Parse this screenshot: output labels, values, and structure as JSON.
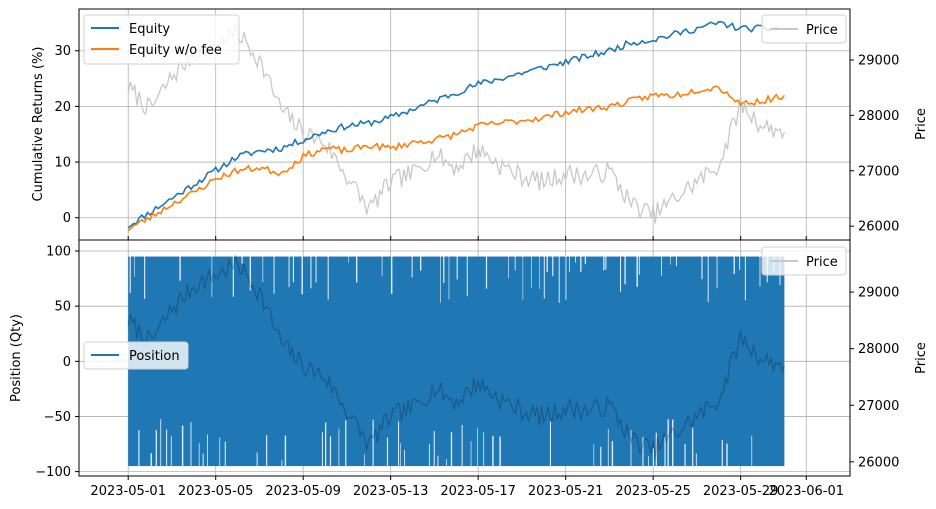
{
  "colors": {
    "equity": "#1f77b4",
    "equity_no_fee": "#ff7f0e",
    "price": "#c8c8c8",
    "position": "#1f77b4",
    "grid": "#b0b0b0",
    "axis": "#000000"
  },
  "chart_data": [
    {
      "type": "line",
      "title": "",
      "xlabel": "",
      "ylabel": "Cumulative Returns (%)",
      "y2label": "Price",
      "xlim": [
        "2023-04-28T18:00",
        "2023-06-03T00:00"
      ],
      "ylim": [
        -4,
        37.5
      ],
      "y2lim": [
        25750,
        29920
      ],
      "x_ticks": [
        "2023-05-01",
        "2023-05-05",
        "2023-05-09",
        "2023-05-13",
        "2023-05-17",
        "2023-05-21",
        "2023-05-25",
        "2023-05-29",
        "2023-06-01"
      ],
      "y_ticks": [
        "0",
        "10",
        "20",
        "30"
      ],
      "y2_ticks": [
        "26000",
        "27000",
        "28000",
        "29000"
      ],
      "grid": true,
      "legend": [
        {
          "location": "upper left",
          "entries": [
            "Equity",
            "Equity w/o fee"
          ]
        },
        {
          "location": "upper right",
          "entries": [
            "Price"
          ]
        }
      ],
      "series": [
        {
          "name": "Equity",
          "axis": "left",
          "x": [
            "2023-05-01",
            "2023-05-02",
            "2023-05-03",
            "2023-05-04",
            "2023-05-05",
            "2023-05-06",
            "2023-05-07",
            "2023-05-08",
            "2023-05-09",
            "2023-05-10",
            "2023-05-11",
            "2023-05-12",
            "2023-05-13",
            "2023-05-14",
            "2023-05-15",
            "2023-05-16",
            "2023-05-17",
            "2023-05-18",
            "2023-05-19",
            "2023-05-20",
            "2023-05-21",
            "2023-05-22",
            "2023-05-23",
            "2023-05-24",
            "2023-05-25",
            "2023-05-26",
            "2023-05-27",
            "2023-05-28",
            "2023-05-29",
            "2023-05-30",
            "2023-05-31"
          ],
          "values": [
            -1.5,
            1,
            3.5,
            6,
            8.5,
            11,
            12,
            12.5,
            14,
            15.5,
            16.5,
            17,
            18,
            19.5,
            21,
            22.5,
            24,
            25,
            26,
            27,
            28,
            29,
            30,
            31.5,
            32,
            33,
            34,
            35,
            34,
            34,
            34
          ]
        },
        {
          "name": "Equity w/o fee",
          "axis": "left",
          "x": [
            "2023-05-01",
            "2023-05-02",
            "2023-05-03",
            "2023-05-04",
            "2023-05-05",
            "2023-05-06",
            "2023-05-07",
            "2023-05-08",
            "2023-05-09",
            "2023-05-10",
            "2023-05-11",
            "2023-05-12",
            "2023-05-13",
            "2023-05-14",
            "2023-05-15",
            "2023-05-16",
            "2023-05-17",
            "2023-05-18",
            "2023-05-19",
            "2023-05-20",
            "2023-05-21",
            "2023-05-22",
            "2023-05-23",
            "2023-05-24",
            "2023-05-25",
            "2023-05-26",
            "2023-05-27",
            "2023-05-28",
            "2023-05-29",
            "2023-05-30",
            "2023-05-31"
          ],
          "values": [
            -2,
            0,
            2.5,
            4.5,
            7,
            8.5,
            9,
            8,
            11,
            12.5,
            12,
            13,
            12.5,
            13.5,
            14,
            15,
            16.5,
            17,
            17.5,
            18,
            19,
            19.5,
            20,
            21,
            22,
            22,
            23,
            23.5,
            20.5,
            21,
            22
          ]
        },
        {
          "name": "Price",
          "axis": "right",
          "x": [
            "2023-05-01",
            "2023-05-02",
            "2023-05-03",
            "2023-05-04",
            "2023-05-05",
            "2023-05-06",
            "2023-05-07",
            "2023-05-08",
            "2023-05-09",
            "2023-05-10",
            "2023-05-11",
            "2023-05-12",
            "2023-05-13",
            "2023-05-14",
            "2023-05-15",
            "2023-05-16",
            "2023-05-17",
            "2023-05-18",
            "2023-05-19",
            "2023-05-20",
            "2023-05-21",
            "2023-05-22",
            "2023-05-23",
            "2023-05-24",
            "2023-05-25",
            "2023-05-26",
            "2023-05-27",
            "2023-05-28",
            "2023-05-29",
            "2023-05-30",
            "2023-05-31"
          ],
          "values": [
            28500,
            28100,
            28700,
            29100,
            29300,
            29500,
            29000,
            28100,
            27700,
            27500,
            26900,
            26300,
            26800,
            26950,
            27300,
            27050,
            27400,
            27100,
            26900,
            26800,
            26950,
            26900,
            27000,
            26400,
            26200,
            26500,
            26800,
            27100,
            28200,
            27800,
            27700
          ]
        }
      ]
    },
    {
      "type": "line",
      "title": "",
      "xlabel": "",
      "ylabel": "Position (Qty)",
      "y2label": "Price",
      "xlim": [
        "2023-04-28T18:00",
        "2023-06-03T00:00"
      ],
      "ylim": [
        -104,
        110
      ],
      "y2lim": [
        25750,
        29920
      ],
      "x_ticks": [
        "2023-05-01",
        "2023-05-05",
        "2023-05-09",
        "2023-05-13",
        "2023-05-17",
        "2023-05-21",
        "2023-05-25",
        "2023-05-29",
        "2023-06-01"
      ],
      "y_ticks": [
        "100",
        "50",
        "0",
        "−50",
        "−100"
      ],
      "y2_ticks": [
        "26000",
        "27000",
        "28000",
        "29000"
      ],
      "grid": true,
      "legend": [
        {
          "location": "center left",
          "entries": [
            "Position"
          ]
        },
        {
          "location": "upper right",
          "entries": [
            "Price"
          ]
        }
      ],
      "series": [
        {
          "name": "Position",
          "axis": "left",
          "x_range": [
            "2023-05-01",
            "2023-05-31"
          ],
          "max": 95,
          "min": -95
        },
        {
          "name": "Price",
          "axis": "right",
          "x": [
            "2023-05-01",
            "2023-05-02",
            "2023-05-03",
            "2023-05-04",
            "2023-05-05",
            "2023-05-06",
            "2023-05-07",
            "2023-05-08",
            "2023-05-09",
            "2023-05-10",
            "2023-05-11",
            "2023-05-12",
            "2023-05-13",
            "2023-05-14",
            "2023-05-15",
            "2023-05-16",
            "2023-05-17",
            "2023-05-18",
            "2023-05-19",
            "2023-05-20",
            "2023-05-21",
            "2023-05-22",
            "2023-05-23",
            "2023-05-24",
            "2023-05-25",
            "2023-05-26",
            "2023-05-27",
            "2023-05-28",
            "2023-05-29",
            "2023-05-30",
            "2023-05-31"
          ],
          "values": [
            28500,
            28100,
            28700,
            29100,
            29300,
            29500,
            29000,
            28100,
            27700,
            27500,
            26900,
            26300,
            26800,
            26950,
            27300,
            27050,
            27400,
            27100,
            26900,
            26800,
            26950,
            26900,
            27000,
            26400,
            26200,
            26500,
            26800,
            27100,
            28200,
            27800,
            27700
          ]
        }
      ]
    }
  ]
}
